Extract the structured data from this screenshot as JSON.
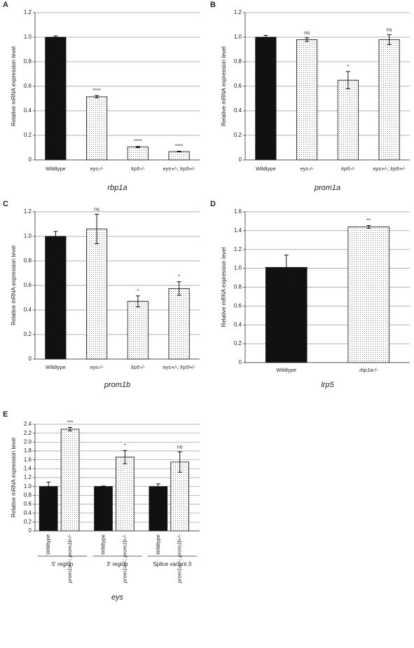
{
  "chart_data": [
    {
      "type": "bar",
      "panel": "A",
      "ylabel": "Relative mRNA expression level",
      "xlabel": "rbp1a",
      "categories": [
        "Wildtype",
        "eys-/-",
        "lrp5-/-",
        "eys+/-; lrp5+/-"
      ],
      "values": [
        1.0,
        0.515,
        0.105,
        0.068
      ],
      "errors": [
        0.01,
        0.01,
        0.005,
        0.003
      ],
      "annotations": [
        null,
        "****",
        "****",
        "****"
      ],
      "colors": [
        "#111111",
        "#ffffff",
        "#ffffff",
        "#ffffff"
      ],
      "ylim": [
        0,
        1.2
      ],
      "yticks": [
        0,
        0.2,
        0.4,
        0.6,
        0.8,
        {
          "value": 1,
          "label": "1.0"
        },
        1.2
      ],
      "grid": true
    },
    {
      "type": "bar",
      "panel": "B",
      "ylabel": "Relative mRNA expression level",
      "xlabel": "prom1a",
      "categories": [
        "Wildtype",
        "eys-/-",
        "lrp5-/-",
        "eys+/-; lrp5+/-"
      ],
      "values": [
        1.0,
        0.98,
        0.65,
        0.98
      ],
      "errors": [
        0.015,
        0.015,
        0.07,
        0.04
      ],
      "annotations": [
        null,
        "ns",
        "*",
        "ns"
      ],
      "colors": [
        "#111111",
        "#ffffff",
        "#ffffff",
        "#ffffff"
      ],
      "ylim": [
        0,
        1.2
      ],
      "yticks": [
        0,
        0.2,
        0.4,
        0.6,
        0.8,
        {
          "value": 1,
          "label": "1.0"
        },
        1.2
      ],
      "grid": true
    },
    {
      "type": "bar",
      "panel": "C",
      "ylabel": "Relative mRNA expression level",
      "xlabel": "prom1b",
      "categories": [
        "Wildtype",
        "eys-/-",
        "lrp5-/-",
        "eys+/-; lrp5+/-"
      ],
      "values": [
        1.0,
        1.06,
        0.47,
        0.575
      ],
      "errors": [
        0.04,
        0.12,
        0.045,
        0.055
      ],
      "annotations": [
        null,
        "ns",
        "*",
        "*"
      ],
      "colors": [
        "#111111",
        "#ffffff",
        "#ffffff",
        "#ffffff"
      ],
      "ylim": [
        0,
        1.2
      ],
      "yticks": [
        0,
        0.2,
        0.4,
        0.6,
        0.8,
        {
          "value": 1,
          "label": "1.0"
        },
        1.2
      ],
      "grid": true
    },
    {
      "type": "bar",
      "panel": "D",
      "ylabel": "Relative mRNA expression level",
      "xlabel": "lrp5",
      "categories": [
        "Wildtype",
        "rbp1a-/-"
      ],
      "values": [
        1.01,
        1.44
      ],
      "errors": [
        0.13,
        0.015
      ],
      "annotations": [
        null,
        "**"
      ],
      "colors": [
        "#111111",
        "#ffffff"
      ],
      "ylim": [
        0,
        1.6
      ],
      "yticks": [
        0,
        0.2,
        0.4,
        0.6,
        0.8,
        {
          "value": 1,
          "label": "1.0"
        },
        1.2,
        1.4,
        1.6
      ],
      "grid": true
    },
    {
      "type": "bar",
      "panel": "E",
      "ylabel": "Relative mRNA expression level",
      "xlabel": "eys",
      "categories": [
        "Wildtype",
        "prom1a-/-; prom1b-/-",
        "Wildtype",
        "prom1a-/-; prom1b-/-",
        "Wildtype",
        "prom1a-/-; prom1b-/-"
      ],
      "groups": [
        "5' region",
        "3' region",
        "Splice variant 3"
      ],
      "values": [
        1.0,
        2.29,
        1.0,
        1.66,
        1.0,
        1.55
      ],
      "errors": [
        0.1,
        0.04,
        0.01,
        0.15,
        0.06,
        0.23
      ],
      "annotations": [
        null,
        "***",
        null,
        "*",
        null,
        "ns"
      ],
      "colors": [
        "#111111",
        "#ffffff",
        "#111111",
        "#ffffff",
        "#111111",
        "#ffffff"
      ],
      "ylim": [
        0,
        2.4
      ],
      "yticks": [
        0,
        0.2,
        0.4,
        0.6,
        0.8,
        {
          "value": 1,
          "label": "1.0"
        },
        1.2,
        1.4,
        1.6,
        1.8,
        {
          "value": 2,
          "label": "2.0"
        },
        2.2,
        2.4
      ],
      "grid": true
    }
  ]
}
